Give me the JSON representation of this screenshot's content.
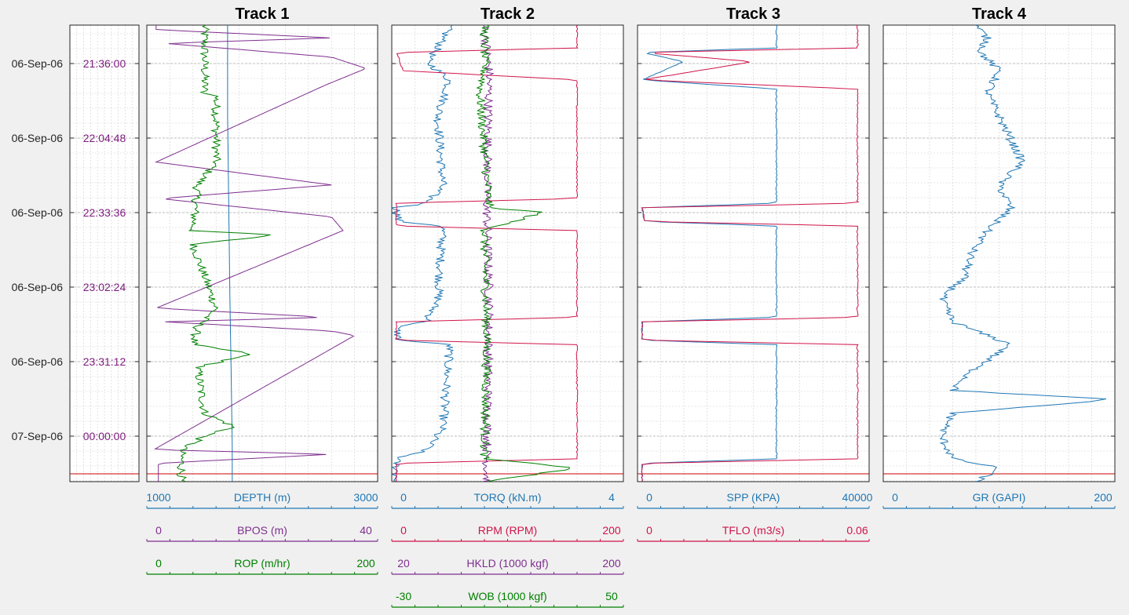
{
  "colors": {
    "blue": "#1f77b4",
    "purple": "#7e2f8e",
    "green": "#008000",
    "crimson": "#d0144a",
    "time_label": "#7e1b7e",
    "red_line": "#cc0000",
    "background": "#f0f0f0",
    "axes_bg": "#ffffff",
    "grid": "#d0d0d0"
  },
  "time_axis": {
    "ticks": [
      {
        "date": "06-Sep-06",
        "time": "21:36:00"
      },
      {
        "date": "06-Sep-06",
        "time": "22:04:48"
      },
      {
        "date": "06-Sep-06",
        "time": "22:33:36"
      },
      {
        "date": "06-Sep-06",
        "time": "23:02:24"
      },
      {
        "date": "06-Sep-06",
        "time": "23:31:12"
      },
      {
        "date": "07-Sep-06",
        "time": "00:00:00"
      }
    ]
  },
  "chart_data": [
    {
      "type": "line",
      "title": "Track 1",
      "y_axis": "time (reversed, increasing downward)",
      "scales": [
        {
          "name": "DEPTH (m)",
          "min": "1000",
          "max": "3000",
          "color": "blue"
        },
        {
          "name": "BPOS (m)",
          "min": "0",
          "max": "40",
          "color": "purple"
        },
        {
          "name": "ROP (m/hr)",
          "min": "0",
          "max": "200",
          "color": "green"
        }
      ],
      "series": [
        {
          "name": "DEPTH (m)",
          "color": "blue",
          "style": "smooth",
          "points": [
            [
              0,
              0.35
            ],
            [
              0.2,
              0.35
            ],
            [
              0.4,
              0.355
            ],
            [
              0.6,
              0.36
            ],
            [
              0.75,
              0.365
            ],
            [
              0.92,
              0.37
            ],
            [
              1,
              0.37
            ]
          ]
        },
        {
          "name": "BPOS (m)",
          "color": "purple",
          "style": "smooth",
          "points": [
            [
              0,
              0.04
            ],
            [
              0.01,
              0.04
            ],
            [
              0.028,
              0.8
            ],
            [
              0.04,
              0.08
            ],
            [
              0.07,
              0.8
            ],
            [
              0.095,
              0.95
            ],
            [
              0.13,
              0.78
            ],
            [
              0.3,
              0.04
            ],
            [
              0.35,
              0.8
            ],
            [
              0.38,
              0.06
            ],
            [
              0.42,
              0.8
            ],
            [
              0.45,
              0.85
            ],
            [
              0.62,
              0.04
            ],
            [
              0.64,
              0.78
            ],
            [
              0.65,
              0.08
            ],
            [
              0.67,
              0.8
            ],
            [
              0.68,
              0.9
            ],
            [
              0.93,
              0.03
            ],
            [
              0.94,
              0.8
            ],
            [
              0.96,
              0.05
            ],
            [
              1,
              0.05
            ]
          ]
        },
        {
          "name": "ROP (m/hr)",
          "color": "green",
          "style": "jagged",
          "points": [
            [
              0,
              0.25
            ],
            [
              0.15,
              0.25
            ],
            [
              0.15,
              0.3
            ],
            [
              0.2,
              0.3
            ],
            [
              0.3,
              0.3
            ],
            [
              0.35,
              0.22
            ],
            [
              0.45,
              0.2
            ],
            [
              0.46,
              0.55
            ],
            [
              0.48,
              0.2
            ],
            [
              0.55,
              0.25
            ],
            [
              0.62,
              0.3
            ],
            [
              0.66,
              0.22
            ],
            [
              0.7,
              0.2
            ],
            [
              0.72,
              0.45
            ],
            [
              0.75,
              0.22
            ],
            [
              0.85,
              0.25
            ],
            [
              0.88,
              0.38
            ],
            [
              0.9,
              0.25
            ],
            [
              0.93,
              0.15
            ],
            [
              1,
              0.15
            ]
          ]
        }
      ]
    },
    {
      "type": "line",
      "title": "Track 2",
      "y_axis": "time (reversed, increasing downward)",
      "scales": [
        {
          "name": "TORQ (kN.m)",
          "min": "0",
          "max": "4",
          "color": "blue"
        },
        {
          "name": "RPM (RPM)",
          "min": "0",
          "max": "200",
          "color": "crimson"
        },
        {
          "name": "HKLD (1000 kgf)",
          "min": "20",
          "max": "200",
          "color": "purple"
        },
        {
          "name": "WOB (1000 kgf)",
          "min": "-30",
          "max": "50",
          "color": "green"
        }
      ],
      "series": [
        {
          "name": "TORQ (kN.m)",
          "color": "blue",
          "style": "jagged",
          "points": [
            [
              0,
              0.25
            ],
            [
              0.05,
              0.2
            ],
            [
              0.08,
              0.15
            ],
            [
              0.12,
              0.25
            ],
            [
              0.2,
              0.2
            ],
            [
              0.35,
              0.22
            ],
            [
              0.39,
              0.15
            ],
            [
              0.4,
              0.02
            ],
            [
              0.43,
              0.03
            ],
            [
              0.44,
              0.22
            ],
            [
              0.6,
              0.2
            ],
            [
              0.65,
              0.15
            ],
            [
              0.66,
              0.02
            ],
            [
              0.69,
              0.03
            ],
            [
              0.7,
              0.25
            ],
            [
              0.88,
              0.22
            ],
            [
              0.93,
              0.15
            ],
            [
              0.95,
              0.02
            ],
            [
              1,
              0.02
            ]
          ]
        },
        {
          "name": "RPM (RPM)",
          "color": "crimson",
          "style": "blocky",
          "points": [
            [
              0,
              0.8
            ],
            [
              0.05,
              0.8
            ],
            [
              0.06,
              0.02
            ],
            [
              0.1,
              0.05
            ],
            [
              0.12,
              0.8
            ],
            [
              0.38,
              0.8
            ],
            [
              0.39,
              0.02
            ],
            [
              0.44,
              0.02
            ],
            [
              0.45,
              0.8
            ],
            [
              0.64,
              0.8
            ],
            [
              0.65,
              0.02
            ],
            [
              0.69,
              0.02
            ],
            [
              0.7,
              0.8
            ],
            [
              0.95,
              0.8
            ],
            [
              0.96,
              0.02
            ],
            [
              1,
              0.02
            ]
          ]
        },
        {
          "name": "HKLD (1000 kgf)",
          "color": "purple",
          "style": "jagged",
          "points": [
            [
              0,
              0.4
            ],
            [
              0.1,
              0.42
            ],
            [
              0.4,
              0.41
            ],
            [
              0.6,
              0.42
            ],
            [
              1,
              0.41
            ]
          ]
        },
        {
          "name": "WOB (1000 kgf)",
          "color": "green",
          "style": "jagged",
          "points": [
            [
              0,
              0.4
            ],
            [
              0.1,
              0.4
            ],
            [
              0.15,
              0.38
            ],
            [
              0.4,
              0.42
            ],
            [
              0.41,
              0.65
            ],
            [
              0.45,
              0.4
            ],
            [
              0.7,
              0.41
            ],
            [
              0.95,
              0.4
            ],
            [
              0.97,
              0.8
            ],
            [
              1,
              0.4
            ]
          ]
        }
      ]
    },
    {
      "type": "line",
      "title": "Track 3",
      "y_axis": "time (reversed, increasing downward)",
      "scales": [
        {
          "name": "SPP (KPA)",
          "min": "0",
          "max": "40000",
          "color": "blue"
        },
        {
          "name": "TFLO (m3/s)",
          "min": "0",
          "max": "0.06",
          "color": "crimson"
        }
      ],
      "series": [
        {
          "name": "SPP (KPA)",
          "color": "blue",
          "style": "blocky",
          "points": [
            [
              0,
              0.6
            ],
            [
              0.05,
              0.6
            ],
            [
              0.06,
              0.02
            ],
            [
              0.08,
              0.2
            ],
            [
              0.12,
              0.02
            ],
            [
              0.14,
              0.6
            ],
            [
              0.39,
              0.6
            ],
            [
              0.4,
              0.02
            ],
            [
              0.43,
              0.03
            ],
            [
              0.44,
              0.6
            ],
            [
              0.64,
              0.6
            ],
            [
              0.65,
              0.02
            ],
            [
              0.69,
              0.02
            ],
            [
              0.7,
              0.6
            ],
            [
              0.95,
              0.6
            ],
            [
              0.96,
              0.02
            ],
            [
              1,
              0.02
            ]
          ]
        },
        {
          "name": "TFLO (m3/s)",
          "color": "crimson",
          "style": "blocky",
          "points": [
            [
              0,
              0.95
            ],
            [
              0.05,
              0.95
            ],
            [
              0.06,
              0.02
            ],
            [
              0.08,
              0.5
            ],
            [
              0.12,
              0.02
            ],
            [
              0.14,
              0.95
            ],
            [
              0.39,
              0.95
            ],
            [
              0.4,
              0.02
            ],
            [
              0.43,
              0.03
            ],
            [
              0.44,
              0.95
            ],
            [
              0.64,
              0.95
            ],
            [
              0.65,
              0.02
            ],
            [
              0.69,
              0.02
            ],
            [
              0.7,
              0.95
            ],
            [
              0.95,
              0.95
            ],
            [
              0.96,
              0.02
            ],
            [
              1,
              0.02
            ]
          ]
        }
      ]
    },
    {
      "type": "line",
      "title": "Track 4",
      "y_axis": "time (reversed, increasing downward)",
      "scales": [
        {
          "name": "GR (GAPI)",
          "min": "0",
          "max": "200",
          "color": "blue"
        }
      ],
      "series": [
        {
          "name": "GR (GAPI)",
          "color": "blue",
          "style": "jagged",
          "points": [
            [
              0,
              0.4
            ],
            [
              0.03,
              0.45
            ],
            [
              0.06,
              0.42
            ],
            [
              0.1,
              0.5
            ],
            [
              0.15,
              0.45
            ],
            [
              0.2,
              0.5
            ],
            [
              0.25,
              0.55
            ],
            [
              0.3,
              0.6
            ],
            [
              0.35,
              0.5
            ],
            [
              0.4,
              0.55
            ],
            [
              0.45,
              0.45
            ],
            [
              0.5,
              0.38
            ],
            [
              0.55,
              0.35
            ],
            [
              0.6,
              0.25
            ],
            [
              0.65,
              0.3
            ],
            [
              0.7,
              0.55
            ],
            [
              0.75,
              0.4
            ],
            [
              0.8,
              0.3
            ],
            [
              0.82,
              0.99
            ],
            [
              0.85,
              0.3
            ],
            [
              0.9,
              0.25
            ],
            [
              0.95,
              0.3
            ],
            [
              0.97,
              0.5
            ],
            [
              1,
              0.4
            ]
          ]
        }
      ]
    }
  ]
}
